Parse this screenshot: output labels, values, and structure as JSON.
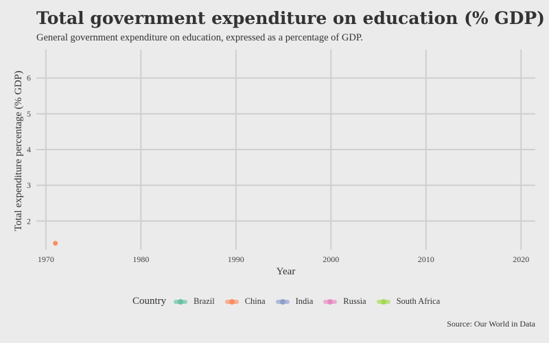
{
  "title": "Total government expenditure on education (% GDP)",
  "subtitle": "General government expenditure on education, expressed as a percentage of GDP.",
  "caption": "Source: Our World in Data",
  "legend": {
    "title": "Country",
    "items": [
      {
        "label": "Brazil",
        "color": "#66c2a5"
      },
      {
        "label": "China",
        "color": "#fc8d62"
      },
      {
        "label": "India",
        "color": "#8da0cb"
      },
      {
        "label": "Russia",
        "color": "#e78ac3"
      },
      {
        "label": "South Africa",
        "color": "#a6d854"
      }
    ]
  },
  "chart_data": {
    "type": "line",
    "xlabel": "Year",
    "ylabel": "Total expenditure percentage (% GDP)",
    "xlim": [
      1969,
      2021.5
    ],
    "ylim": [
      1.2,
      6.8
    ],
    "x_ticks": [
      1970,
      1980,
      1990,
      2000,
      2010,
      2020
    ],
    "y_ticks": [
      2,
      3,
      4,
      5,
      6
    ],
    "grid": true,
    "legend_position": "bottom",
    "series": [
      {
        "name": "Brazil",
        "color": "#66c2a5",
        "points": []
      },
      {
        "name": "China",
        "color": "#fc8d62",
        "points": [
          {
            "x": 1971,
            "y": 1.38
          }
        ]
      },
      {
        "name": "India",
        "color": "#8da0cb",
        "points": []
      },
      {
        "name": "Russia",
        "color": "#e78ac3",
        "points": []
      },
      {
        "name": "South Africa",
        "color": "#a6d854",
        "points": []
      }
    ]
  }
}
